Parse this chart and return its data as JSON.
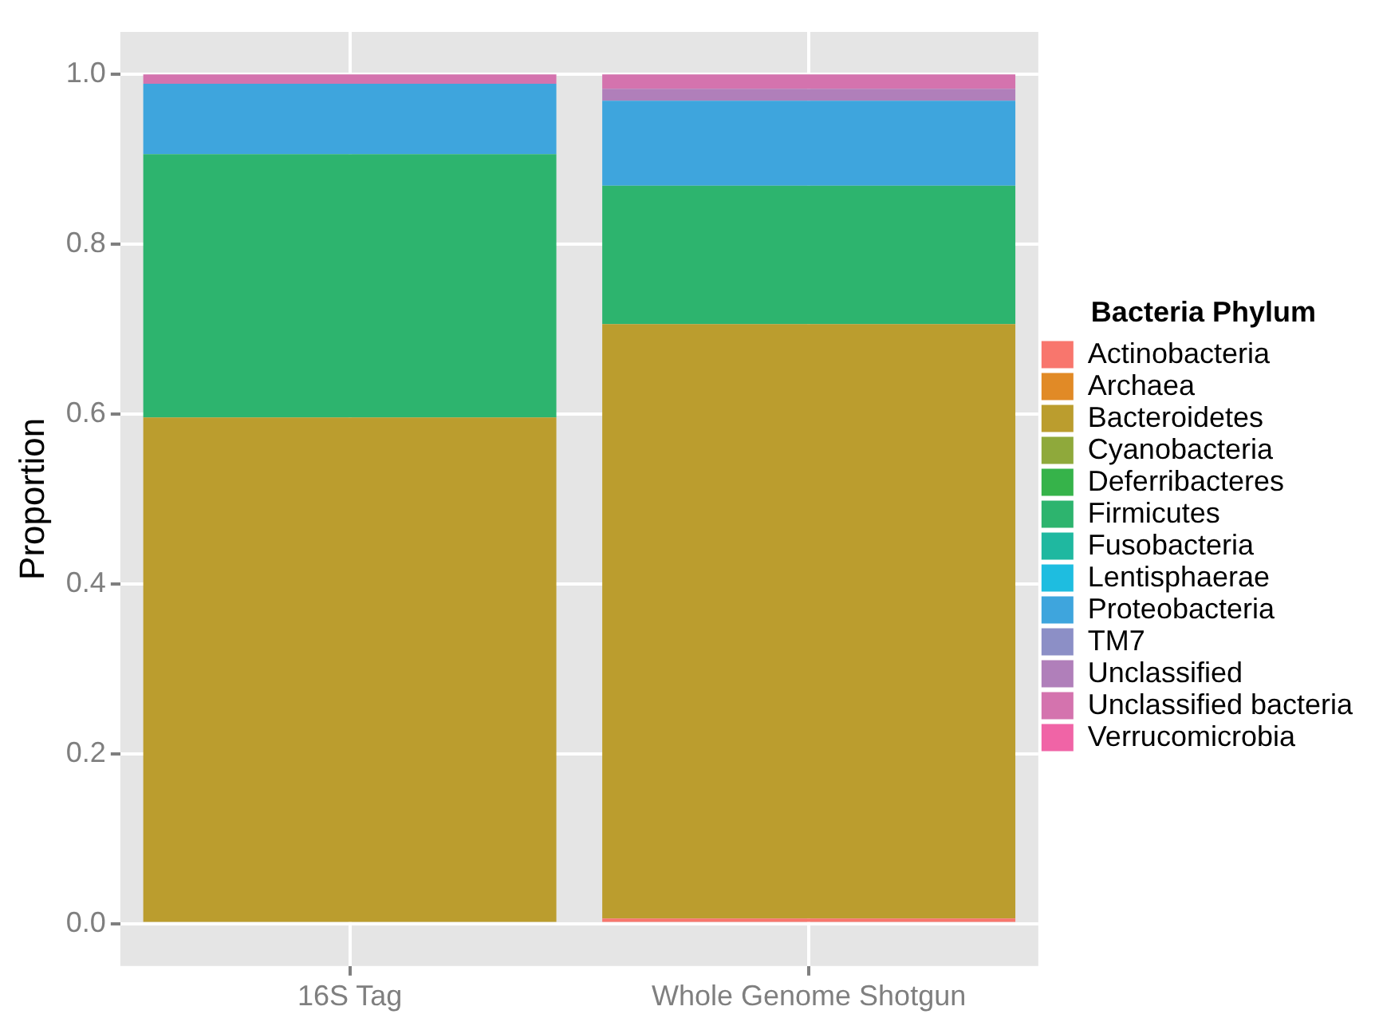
{
  "chart_data": {
    "type": "bar",
    "stacked": true,
    "ylabel": "Proportion",
    "legend_title": "Bacteria Phylum",
    "legend": "right",
    "grid": true,
    "categories": [
      "16S Tag",
      "Whole Genome Shotgun"
    ],
    "ylim": [
      -0.05,
      1.05
    ],
    "yticks": [
      {
        "value": 0,
        "label": "0.0"
      },
      {
        "value": 0.2,
        "label": "0.2"
      },
      {
        "value": 0.4,
        "label": "0.4"
      },
      {
        "value": 0.6,
        "label": "0.6"
      },
      {
        "value": 0.8,
        "label": "0.8"
      },
      {
        "value": 1,
        "label": "1.0"
      }
    ],
    "series": [
      {
        "name": "Actinobacteria",
        "color": "#f8766d",
        "values": [
          0,
          0.006
        ]
      },
      {
        "name": "Archaea",
        "color": "#e18a26",
        "values": [
          0,
          0
        ]
      },
      {
        "name": "Bacteroidetes",
        "color": "#bb9d2e",
        "values": [
          0.596,
          0.7
        ]
      },
      {
        "name": "Cyanobacteria",
        "color": "#8fa93b",
        "values": [
          0,
          0
        ]
      },
      {
        "name": "Deferribacteres",
        "color": "#36b34a",
        "values": [
          0,
          0
        ]
      },
      {
        "name": "Firmicutes",
        "color": "#2db46e",
        "values": [
          0.31,
          0.163
        ]
      },
      {
        "name": "Fusobacteria",
        "color": "#1fb8a0",
        "values": [
          0,
          0
        ]
      },
      {
        "name": "Lentisphaerae",
        "color": "#1ebde0",
        "values": [
          0,
          0
        ]
      },
      {
        "name": "Proteobacteria",
        "color": "#3ea5dd",
        "values": [
          0.083,
          0.1
        ]
      },
      {
        "name": "TM7",
        "color": "#8c8fc6",
        "values": [
          0,
          0
        ]
      },
      {
        "name": "Unclassified",
        "color": "#b07fba",
        "values": [
          0,
          0.014
        ]
      },
      {
        "name": "Unclassified bacteria",
        "color": "#d473ae",
        "values": [
          0.011,
          0.017
        ]
      },
      {
        "name": "Verrucomicrobia",
        "color": "#f064a6",
        "values": [
          0,
          0
        ]
      }
    ]
  }
}
